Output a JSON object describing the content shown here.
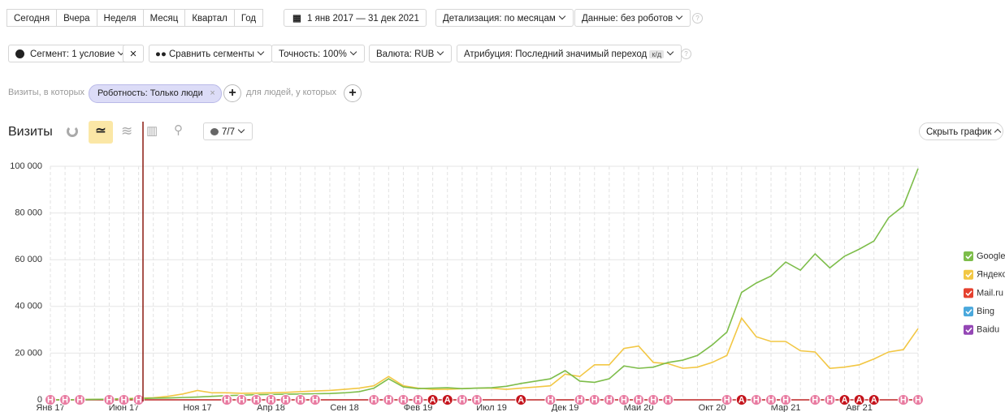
{
  "toolbar": {
    "periods": [
      "Сегодня",
      "Вчера",
      "Неделя",
      "Месяц",
      "Квартал",
      "Год"
    ],
    "date_range": "1 янв 2017 — 31 дек 2021",
    "detail": "Детализация: по месяцам",
    "data_filter": "Данные: без роботов"
  },
  "toolbar2": {
    "segment": "Сегмент: 1 условие",
    "compare": "Сравнить сегменты",
    "accuracy": "Точность: 100%",
    "currency": "Валюта: RUB",
    "attribution": "Атрибуция: Последний значимый переход",
    "attribution_tag": "к/д"
  },
  "filter": {
    "prefix": "Визиты, в которых",
    "condition": "Роботность: Только люди",
    "suffix": "для людей, у которых"
  },
  "chart_header": {
    "title": "Визиты",
    "annotations_toggle": "7/7",
    "hide_chart": "Скрыть график"
  },
  "chart_data": {
    "type": "line",
    "categories": [
      "Янв 17",
      null,
      null,
      null,
      null,
      "Июн 17",
      null,
      null,
      null,
      null,
      "Ноя 17",
      null,
      null,
      null,
      null,
      "Апр 18",
      null,
      null,
      null,
      null,
      "Сен 18",
      null,
      null,
      null,
      null,
      "Фев 19",
      null,
      null,
      null,
      null,
      "Июл 19",
      null,
      null,
      null,
      null,
      "Дек 19",
      null,
      null,
      null,
      null,
      "Май 20",
      null,
      null,
      null,
      null,
      "Окт 20",
      null,
      null,
      null,
      null,
      "Мар 21",
      null,
      null,
      null,
      null,
      "Авг 21",
      null,
      null,
      null,
      null
    ],
    "series": [
      {
        "name": "Google",
        "color": "#7dbd4a",
        "values": [
          0,
          0,
          100,
          200,
          300,
          400,
          500,
          700,
          800,
          1000,
          1200,
          1500,
          1800,
          2000,
          2200,
          2300,
          2400,
          2500,
          2600,
          2700,
          3000,
          3500,
          5000,
          9000,
          5500,
          4800,
          5000,
          5200,
          4800,
          5000,
          5200,
          5800,
          7000,
          8000,
          9000,
          12500,
          8000,
          7500,
          9000,
          14500,
          13500,
          14000,
          16000,
          17000,
          19000,
          23500,
          29000,
          46000,
          50000,
          53000,
          59000,
          55500,
          62500,
          56500,
          61500,
          64500,
          68000,
          78000,
          83000,
          99000
        ]
      },
      {
        "name": "Яндекс",
        "color": "#f2c744",
        "values": [
          0,
          0,
          100,
          200,
          300,
          500,
          700,
          900,
          1500,
          2500,
          4000,
          3000,
          3000,
          2800,
          2900,
          3000,
          3200,
          3500,
          3800,
          4000,
          4500,
          5000,
          6000,
          10000,
          6000,
          5000,
          4500,
          4500,
          4800,
          5000,
          5000,
          4500,
          5000,
          5500,
          6000,
          11000,
          10000,
          15000,
          15000,
          22000,
          23000,
          16000,
          15500,
          13500,
          14000,
          16000,
          19000,
          35000,
          27000,
          25000,
          25000,
          21000,
          20500,
          13500,
          14000,
          15000,
          17500,
          20500,
          21500,
          30500
        ]
      },
      {
        "name": "Mail.ru",
        "color": "#e5412f",
        "values": [
          0,
          0,
          0,
          0,
          0,
          0,
          0,
          0,
          0,
          0,
          0,
          0,
          0,
          0,
          0,
          0,
          0,
          0,
          0,
          0,
          0,
          0,
          0,
          0,
          0,
          0,
          0,
          0,
          0,
          0,
          0,
          0,
          0,
          0,
          0,
          0,
          0,
          0,
          0,
          0,
          0,
          0,
          0,
          0,
          0,
          0,
          0,
          0,
          0,
          0,
          0,
          0,
          0,
          0,
          0,
          0,
          0,
          0,
          0,
          0
        ]
      },
      {
        "name": "Bing",
        "color": "#4aa8dc",
        "values": [
          0,
          0,
          0,
          0,
          0,
          0,
          0,
          0,
          0,
          0,
          0,
          0,
          0,
          0,
          0,
          0,
          0,
          0,
          0,
          0,
          0,
          0,
          0,
          0,
          0,
          0,
          0,
          0,
          0,
          0,
          0,
          0,
          0,
          0,
          0,
          0,
          0,
          0,
          0,
          0,
          0,
          0,
          0,
          0,
          0,
          0,
          0,
          0,
          0,
          0,
          0,
          0,
          0,
          0,
          0,
          0,
          0,
          0,
          0,
          0
        ]
      },
      {
        "name": "Baidu",
        "color": "#9447b5",
        "values": [
          0,
          0,
          0,
          0,
          0,
          0,
          0,
          0,
          0,
          0,
          0,
          0,
          0,
          0,
          0,
          0,
          0,
          0,
          0,
          0,
          0,
          0,
          0,
          0,
          0,
          0,
          0,
          0,
          0,
          0,
          0,
          0,
          0,
          0,
          0,
          0,
          0,
          0,
          0,
          0,
          0,
          0,
          0,
          0,
          0,
          0,
          0,
          0,
          0,
          0,
          0,
          0,
          0,
          0,
          0,
          0,
          0,
          0,
          0,
          0
        ]
      }
    ],
    "ylim": [
      0,
      100000
    ],
    "yticks": [
      0,
      {
        "value": 20000,
        "label": "20 000"
      },
      {
        "value": 40000,
        "label": "40 000"
      },
      {
        "value": 60000,
        "label": "60 000"
      },
      {
        "value": 80000,
        "label": "80 000"
      },
      {
        "value": 100000,
        "label": "100 000"
      }
    ],
    "grid": true,
    "markers": [
      {
        "x": 0,
        "label": "Н"
      },
      {
        "x": 1,
        "label": "Н"
      },
      {
        "x": 2,
        "label": "Н"
      },
      {
        "x": 4,
        "label": "Н"
      },
      {
        "x": 5,
        "label": "Н"
      },
      {
        "x": 6,
        "label": "Н"
      },
      {
        "x": 12,
        "label": "Н"
      },
      {
        "x": 13,
        "label": "Н"
      },
      {
        "x": 14,
        "label": "Н"
      },
      {
        "x": 15,
        "label": "Н"
      },
      {
        "x": 16,
        "label": "Н"
      },
      {
        "x": 17,
        "label": "Н"
      },
      {
        "x": 18,
        "label": "Н"
      },
      {
        "x": 22,
        "label": "Н"
      },
      {
        "x": 23,
        "label": "Н"
      },
      {
        "x": 24,
        "label": "Н"
      },
      {
        "x": 25,
        "label": "Н"
      },
      {
        "x": 26,
        "label": "А"
      },
      {
        "x": 27,
        "label": "А"
      },
      {
        "x": 28,
        "label": "Н"
      },
      {
        "x": 29,
        "label": "Н"
      },
      {
        "x": 32,
        "label": "А"
      },
      {
        "x": 34,
        "label": "Н"
      },
      {
        "x": 36,
        "label": "Н"
      },
      {
        "x": 37,
        "label": "Н"
      },
      {
        "x": 38,
        "label": "Н"
      },
      {
        "x": 39,
        "label": "Н"
      },
      {
        "x": 40,
        "label": "Н"
      },
      {
        "x": 41,
        "label": "Н"
      },
      {
        "x": 42,
        "label": "Н"
      },
      {
        "x": 46,
        "label": "Н"
      },
      {
        "x": 47,
        "label": "А"
      },
      {
        "x": 48,
        "label": "Н"
      },
      {
        "x": 49,
        "label": "Н"
      },
      {
        "x": 50,
        "label": "Н"
      },
      {
        "x": 52,
        "label": "Н"
      },
      {
        "x": 53,
        "label": "Н"
      },
      {
        "x": 54,
        "label": "А"
      },
      {
        "x": 55,
        "label": "А"
      },
      {
        "x": 56,
        "label": "А"
      },
      {
        "x": 58,
        "label": "Н"
      },
      {
        "x": 59,
        "label": "Н"
      }
    ]
  }
}
